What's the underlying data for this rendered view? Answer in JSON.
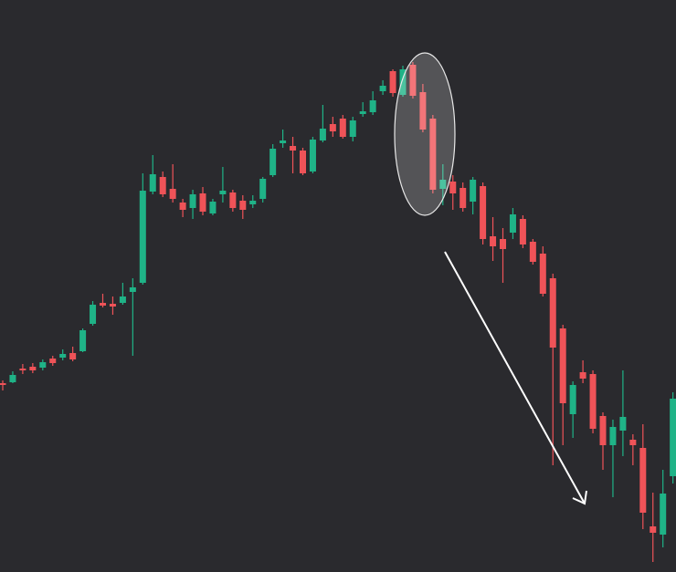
{
  "chart_data": {
    "type": "candlestick",
    "up_color": "#1fb387",
    "down_color": "#ef5358",
    "ylim": [
      0,
      627
    ],
    "open": [
      207,
      208,
      223,
      225,
      224,
      234,
      235,
      240,
      242,
      272,
      295,
      294,
      295,
      307,
      317,
      417,
      433,
      420,
      405,
      399,
      415,
      393,
      414,
      416,
      407,
      403,
      409,
      435,
      470,
      467,
      462,
      439,
      473,
      491,
      497,
      477,
      502,
      504,
      527,
      549,
      523,
      556,
      526,
      497,
      420,
      428,
      421,
      406,
      423,
      368,
      365,
      372,
      387,
      362,
      349,
      322,
      267,
      173,
      219,
      217,
      171,
      139,
      155,
      145,
      136,
      50,
      41,
      105
    ],
    "high": [
      210,
      220,
      228,
      229,
      233,
      237,
      244,
      247,
      267,
      297,
      305,
      302,
      317,
      322,
      437,
      457,
      439,
      447,
      409,
      419,
      422,
      409,
      444,
      419,
      413,
      413,
      433,
      469,
      485,
      477,
      465,
      477,
      512,
      499,
      501,
      499,
      515,
      527,
      539,
      551,
      555,
      559,
      535,
      501,
      447,
      435,
      427,
      433,
      427,
      389,
      377,
      399,
      391,
      365,
      357,
      327,
      271,
      209,
      232,
      221,
      175,
      167,
      221,
      151,
      162,
      87,
      112,
      197
    ],
    "low": [
      199,
      207,
      217,
      218,
      221,
      226,
      232,
      231,
      241,
      270,
      290,
      282,
      293,
      237,
      315,
      414,
      411,
      405,
      389,
      387,
      391,
      391,
      405,
      395,
      387,
      399,
      405,
      433,
      465,
      437,
      435,
      437,
      471,
      477,
      475,
      472,
      499,
      501,
      523,
      521,
      521,
      519,
      482,
      415,
      402,
      397,
      395,
      392,
      359,
      341,
      317,
      365,
      355,
      337,
      302,
      117,
      139,
      147,
      207,
      152,
      112,
      82,
      127,
      117,
      47,
      11,
      27,
      97
    ],
    "close": [
      205,
      216,
      221,
      221,
      230,
      229,
      239,
      233,
      265,
      293,
      292,
      291,
      302,
      312,
      418,
      436,
      414,
      409,
      397,
      414,
      395,
      406,
      418,
      399,
      397,
      407,
      431,
      464,
      473,
      462,
      437,
      474,
      486,
      483,
      477,
      495,
      505,
      517,
      533,
      525,
      551,
      522,
      485,
      419,
      430,
      415,
      399,
      430,
      365,
      357,
      354,
      392,
      359,
      340,
      305,
      246,
      185,
      205,
      212,
      157,
      139,
      159,
      170,
      139,
      65,
      43,
      86,
      190
    ]
  }
}
